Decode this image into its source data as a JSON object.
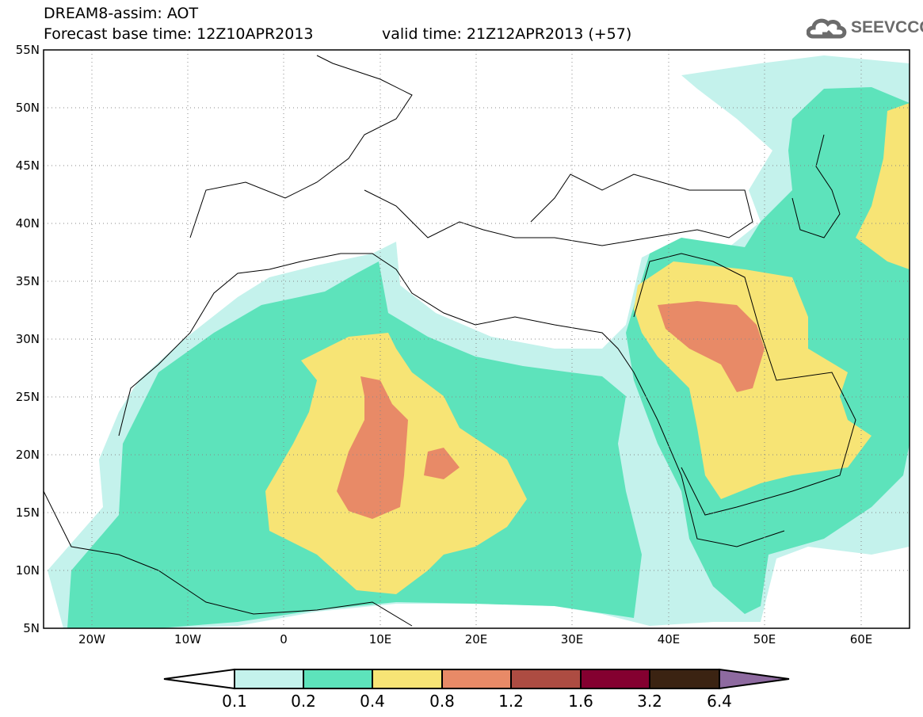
{
  "header": {
    "title": "DREAM8-assim: AOT",
    "base_time": "Forecast base time: 12Z10APR2013",
    "valid_time": "valid time: 21Z12APR2013 (+57)",
    "logo_text": "SEEVCCC"
  },
  "map": {
    "lat_labels": [
      "55N",
      "50N",
      "45N",
      "40N",
      "35N",
      "30N",
      "25N",
      "20N",
      "15N",
      "10N",
      "5N"
    ],
    "lon_labels": [
      "20W",
      "10W",
      "0",
      "10E",
      "20E",
      "30E",
      "40E",
      "50E",
      "60E"
    ],
    "variable": "Aerosol Optical Thickness"
  },
  "colorbar": {
    "labels": [
      "0.1",
      "0.2",
      "0.4",
      "0.8",
      "1.2",
      "1.6",
      "3.2",
      "6.4"
    ],
    "colors": [
      "#ffffff",
      "#c4f2ec",
      "#5de3bb",
      "#f7e475",
      "#e88a67",
      "#ad4c42",
      "#840030",
      "#3b2312",
      "#8e6aa0"
    ]
  }
}
